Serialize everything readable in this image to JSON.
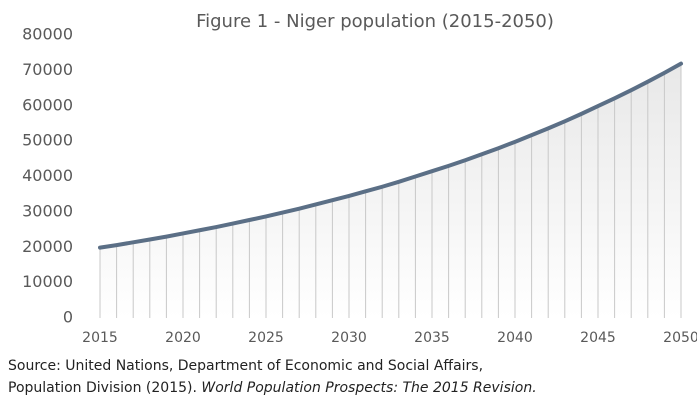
{
  "chart_data": {
    "type": "line",
    "title": "Figure 1 - Niger population (2015-2050)",
    "x": [
      2015,
      2016,
      2017,
      2018,
      2019,
      2020,
      2021,
      2022,
      2023,
      2024,
      2025,
      2026,
      2027,
      2028,
      2029,
      2030,
      2031,
      2032,
      2033,
      2034,
      2035,
      2036,
      2037,
      2038,
      2039,
      2040,
      2041,
      2042,
      2043,
      2044,
      2045,
      2046,
      2047,
      2048,
      2049,
      2050
    ],
    "series": [
      {
        "name": "Population",
        "color": "#5b6f86",
        "values": [
          19900,
          20600,
          21400,
          22200,
          23000,
          23900,
          24800,
          25700,
          26700,
          27700,
          28700,
          29800,
          30900,
          32100,
          33300,
          34500,
          35800,
          37100,
          38500,
          40000,
          41500,
          43000,
          44600,
          46300,
          48000,
          49800,
          51700,
          53600,
          55600,
          57700,
          59900,
          62100,
          64400,
          66800,
          69300,
          71900
        ]
      }
    ],
    "xlim": [
      2015,
      2050
    ],
    "xticks": [
      2015,
      2020,
      2025,
      2030,
      2035,
      2040,
      2045,
      2050
    ],
    "ylim": [
      0,
      80000
    ],
    "yticks": [
      0,
      10000,
      20000,
      30000,
      40000,
      50000,
      60000,
      70000,
      80000
    ],
    "drop_lines": true,
    "source": [
      "Source: United Nations, Department of Economic and Social Affairs,",
      "Population Division (2015).",
      "World Population Prospects: The 2015 Revision."
    ]
  }
}
